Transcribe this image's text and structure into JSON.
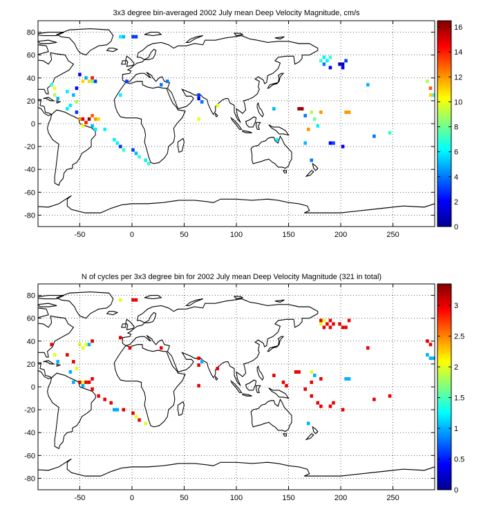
{
  "chart_data": [
    {
      "type": "heatmap",
      "title": "3x3 degree bin-averaged 2002 July mean Deep Velocity Magnitude, cm/s",
      "xlabel": "",
      "ylabel": "",
      "xlim": [
        -90,
        290
      ],
      "ylim": [
        -90,
        90
      ],
      "xticks": [
        -50,
        0,
        50,
        100,
        150,
        200,
        250
      ],
      "yticks": [
        -80,
        -60,
        -40,
        -20,
        0,
        20,
        40,
        60,
        80
      ],
      "grid": true,
      "colorbar": {
        "range": [
          0,
          16.5
        ],
        "ticks": [
          0,
          2,
          4,
          6,
          8,
          10,
          12,
          14,
          16
        ]
      },
      "cells": [
        {
          "lon": -11,
          "lat": 76,
          "value": 6
        },
        {
          "lon": 1,
          "lat": 76,
          "value": 3
        },
        {
          "lon": 4,
          "lat": 76,
          "value": 3
        },
        {
          "lon": -8,
          "lat": 76,
          "value": 5
        },
        {
          "lon": -77,
          "lat": 34,
          "value": 7
        },
        {
          "lon": -74,
          "lat": 31,
          "value": 10
        },
        {
          "lon": -74,
          "lat": 25,
          "value": 9
        },
        {
          "lon": -71,
          "lat": 22,
          "value": 5
        },
        {
          "lon": -62,
          "lat": 28,
          "value": 6
        },
        {
          "lon": -50,
          "lat": 43,
          "value": 2
        },
        {
          "lon": -47,
          "lat": 37,
          "value": 11
        },
        {
          "lon": -44,
          "lat": 40,
          "value": 5
        },
        {
          "lon": -41,
          "lat": 37,
          "value": 11
        },
        {
          "lon": -38,
          "lat": 40,
          "value": 14
        },
        {
          "lon": -38,
          "lat": 37,
          "value": 8
        },
        {
          "lon": -35,
          "lat": 37,
          "value": 3
        },
        {
          "lon": -53,
          "lat": 31,
          "value": 2
        },
        {
          "lon": -56,
          "lat": 25,
          "value": 5
        },
        {
          "lon": -53,
          "lat": 19,
          "value": 9
        },
        {
          "lon": -59,
          "lat": 16,
          "value": 6
        },
        {
          "lon": -62,
          "lat": 13,
          "value": 6
        },
        {
          "lon": -53,
          "lat": 10,
          "value": 3
        },
        {
          "lon": -50,
          "lat": 4,
          "value": 12
        },
        {
          "lon": -47,
          "lat": 4,
          "value": 15
        },
        {
          "lon": -44,
          "lat": 1,
          "value": 14
        },
        {
          "lon": -41,
          "lat": 4,
          "value": 16
        },
        {
          "lon": -38,
          "lat": 7,
          "value": 13
        },
        {
          "lon": -35,
          "lat": 4,
          "value": 12
        },
        {
          "lon": -32,
          "lat": 4,
          "value": 11
        },
        {
          "lon": -47,
          "lat": -2,
          "value": 10
        },
        {
          "lon": -38,
          "lat": -2,
          "value": 5
        },
        {
          "lon": -35,
          "lat": -5,
          "value": 6
        },
        {
          "lon": -26,
          "lat": -5,
          "value": 6
        },
        {
          "lon": -17,
          "lat": -14,
          "value": 6
        },
        {
          "lon": -14,
          "lat": -17,
          "value": 6
        },
        {
          "lon": -11,
          "lat": -20,
          "value": 3
        },
        {
          "lon": -8,
          "lat": -23,
          "value": 7
        },
        {
          "lon": 1,
          "lat": -23,
          "value": 3
        },
        {
          "lon": 4,
          "lat": -26,
          "value": 5
        },
        {
          "lon": 7,
          "lat": -29,
          "value": 7
        },
        {
          "lon": 13,
          "lat": -32,
          "value": 6
        },
        {
          "lon": 16,
          "lat": -35,
          "value": 7
        },
        {
          "lon": -11,
          "lat": 25,
          "value": 6
        },
        {
          "lon": -5,
          "lat": 37,
          "value": 3
        },
        {
          "lon": 28,
          "lat": 34,
          "value": 4
        },
        {
          "lon": 34,
          "lat": 37,
          "value": 4
        },
        {
          "lon": 64,
          "lat": 25,
          "value": 3
        },
        {
          "lon": 64,
          "lat": 22,
          "value": 2
        },
        {
          "lon": 67,
          "lat": 19,
          "value": 4
        },
        {
          "lon": 64,
          "lat": 4,
          "value": 10
        },
        {
          "lon": 82,
          "lat": 16,
          "value": 10
        },
        {
          "lon": 136,
          "lat": 13,
          "value": 5
        },
        {
          "lon": 139,
          "lat": -14,
          "value": 6
        },
        {
          "lon": 160,
          "lat": 13,
          "value": 16
        },
        {
          "lon": 163,
          "lat": 13,
          "value": 16
        },
        {
          "lon": 166,
          "lat": 7,
          "value": 4
        },
        {
          "lon": 172,
          "lat": 10,
          "value": 9
        },
        {
          "lon": 175,
          "lat": 4,
          "value": 8
        },
        {
          "lon": 178,
          "lat": -2,
          "value": 6
        },
        {
          "lon": 181,
          "lat": 10,
          "value": 12
        },
        {
          "lon": 169,
          "lat": -5,
          "value": 12
        },
        {
          "lon": 166,
          "lat": -17,
          "value": 5
        },
        {
          "lon": 172,
          "lat": -32,
          "value": 4
        },
        {
          "lon": 190,
          "lat": -17,
          "value": 2
        },
        {
          "lon": 193,
          "lat": -17,
          "value": 3
        },
        {
          "lon": 202,
          "lat": -20,
          "value": 2
        },
        {
          "lon": 205,
          "lat": 10,
          "value": 12
        },
        {
          "lon": 208,
          "lat": 10,
          "value": 12
        },
        {
          "lon": 232,
          "lat": -11,
          "value": 4
        },
        {
          "lon": 247,
          "lat": -8,
          "value": 7
        },
        {
          "lon": 181,
          "lat": 55,
          "value": 7
        },
        {
          "lon": 184,
          "lat": 58,
          "value": 6
        },
        {
          "lon": 187,
          "lat": 55,
          "value": 6
        },
        {
          "lon": 190,
          "lat": 58,
          "value": 7
        },
        {
          "lon": 184,
          "lat": 52,
          "value": 4
        },
        {
          "lon": 190,
          "lat": 49,
          "value": 2
        },
        {
          "lon": 199,
          "lat": 52,
          "value": 1
        },
        {
          "lon": 202,
          "lat": 52,
          "value": 1
        },
        {
          "lon": 205,
          "lat": 55,
          "value": 3
        },
        {
          "lon": 202,
          "lat": 49,
          "value": 2
        },
        {
          "lon": 226,
          "lat": 34,
          "value": 5
        },
        {
          "lon": 283,
          "lat": 37,
          "value": 9
        },
        {
          "lon": 286,
          "lat": 31,
          "value": 13
        },
        {
          "lon": 286,
          "lat": 25,
          "value": 11
        },
        {
          "lon": 289,
          "lat": 25,
          "value": 7
        }
      ]
    },
    {
      "type": "heatmap",
      "title": "N of cycles per 3x3 degree bin for 2002 July mean Deep Velocity Magnitude (321 in total)",
      "xlabel": "",
      "ylabel": "",
      "xlim": [
        -90,
        290
      ],
      "ylim": [
        -90,
        90
      ],
      "xticks": [
        -50,
        0,
        50,
        100,
        150,
        200,
        250
      ],
      "yticks": [
        -80,
        -60,
        -40,
        -20,
        0,
        20,
        40,
        60,
        80
      ],
      "grid": true,
      "colorbar": {
        "range": [
          0,
          3.35
        ],
        "ticks": [
          0,
          0.5,
          1,
          1.5,
          2,
          2.5,
          3
        ]
      },
      "cells": [
        {
          "lon": -11,
          "lat": 76,
          "value": 2
        },
        {
          "lon": 1,
          "lat": 76,
          "value": 3
        },
        {
          "lon": 4,
          "lat": 76,
          "value": 3
        },
        {
          "lon": -77,
          "lat": 37,
          "value": 3
        },
        {
          "lon": -74,
          "lat": 28,
          "value": 2
        },
        {
          "lon": -71,
          "lat": 22,
          "value": 1
        },
        {
          "lon": -62,
          "lat": 28,
          "value": 3
        },
        {
          "lon": -50,
          "lat": 37,
          "value": 2
        },
        {
          "lon": -47,
          "lat": 34,
          "value": 2
        },
        {
          "lon": -44,
          "lat": 37,
          "value": 2
        },
        {
          "lon": -41,
          "lat": 37,
          "value": 1
        },
        {
          "lon": -38,
          "lat": 40,
          "value": 3
        },
        {
          "lon": -56,
          "lat": 22,
          "value": 3
        },
        {
          "lon": -53,
          "lat": 16,
          "value": 2
        },
        {
          "lon": -59,
          "lat": 13,
          "value": 1
        },
        {
          "lon": -56,
          "lat": 4,
          "value": 1
        },
        {
          "lon": -50,
          "lat": 4,
          "value": 3
        },
        {
          "lon": -47,
          "lat": 4,
          "value": 2
        },
        {
          "lon": -44,
          "lat": 4,
          "value": 3
        },
        {
          "lon": -41,
          "lat": 4,
          "value": 3
        },
        {
          "lon": -38,
          "lat": 7,
          "value": 3
        },
        {
          "lon": -47,
          "lat": 1,
          "value": 1
        },
        {
          "lon": -38,
          "lat": -2,
          "value": 3
        },
        {
          "lon": -32,
          "lat": -8,
          "value": 3
        },
        {
          "lon": -26,
          "lat": -11,
          "value": 3
        },
        {
          "lon": -20,
          "lat": -14,
          "value": 3
        },
        {
          "lon": -17,
          "lat": -20,
          "value": 1
        },
        {
          "lon": -14,
          "lat": -20,
          "value": 1
        },
        {
          "lon": -8,
          "lat": -20,
          "value": 3
        },
        {
          "lon": 1,
          "lat": -23,
          "value": 3
        },
        {
          "lon": 4,
          "lat": -26,
          "value": 2
        },
        {
          "lon": 7,
          "lat": -29,
          "value": 3
        },
        {
          "lon": 13,
          "lat": -32,
          "value": 2
        },
        {
          "lon": -11,
          "lat": 43,
          "value": 3
        },
        {
          "lon": -2,
          "lat": 34,
          "value": 3
        },
        {
          "lon": 28,
          "lat": 34,
          "value": 3
        },
        {
          "lon": 64,
          "lat": 25,
          "value": 3
        },
        {
          "lon": 64,
          "lat": 19,
          "value": 3
        },
        {
          "lon": 67,
          "lat": 22,
          "value": 1
        },
        {
          "lon": 64,
          "lat": 1,
          "value": 3
        },
        {
          "lon": 82,
          "lat": 16,
          "value": 3
        },
        {
          "lon": 136,
          "lat": 10,
          "value": 3
        },
        {
          "lon": 145,
          "lat": 4,
          "value": 3
        },
        {
          "lon": 148,
          "lat": 1,
          "value": 3
        },
        {
          "lon": 157,
          "lat": 13,
          "value": 3
        },
        {
          "lon": 160,
          "lat": 13,
          "value": 3
        },
        {
          "lon": 172,
          "lat": 13,
          "value": 2
        },
        {
          "lon": 175,
          "lat": 10,
          "value": 1
        },
        {
          "lon": 172,
          "lat": 4,
          "value": 3
        },
        {
          "lon": 181,
          "lat": 7,
          "value": 3
        },
        {
          "lon": 166,
          "lat": -2,
          "value": 3
        },
        {
          "lon": 172,
          "lat": -8,
          "value": 3
        },
        {
          "lon": 178,
          "lat": -14,
          "value": 3
        },
        {
          "lon": 181,
          "lat": -17,
          "value": 3
        },
        {
          "lon": 190,
          "lat": -17,
          "value": 3
        },
        {
          "lon": 193,
          "lat": -14,
          "value": 3
        },
        {
          "lon": 169,
          "lat": -32,
          "value": 1
        },
        {
          "lon": 202,
          "lat": -20,
          "value": 3
        },
        {
          "lon": 205,
          "lat": 7,
          "value": 1
        },
        {
          "lon": 208,
          "lat": 7,
          "value": 1
        },
        {
          "lon": 232,
          "lat": -11,
          "value": 3
        },
        {
          "lon": 247,
          "lat": -8,
          "value": 3
        },
        {
          "lon": 181,
          "lat": 58,
          "value": 3
        },
        {
          "lon": 184,
          "lat": 58,
          "value": 2
        },
        {
          "lon": 187,
          "lat": 55,
          "value": 3
        },
        {
          "lon": 190,
          "lat": 58,
          "value": 3
        },
        {
          "lon": 181,
          "lat": 55,
          "value": 2
        },
        {
          "lon": 184,
          "lat": 52,
          "value": 3
        },
        {
          "lon": 190,
          "lat": 52,
          "value": 3
        },
        {
          "lon": 193,
          "lat": 55,
          "value": 3
        },
        {
          "lon": 199,
          "lat": 55,
          "value": 3
        },
        {
          "lon": 202,
          "lat": 52,
          "value": 3
        },
        {
          "lon": 205,
          "lat": 52,
          "value": 3
        },
        {
          "lon": 208,
          "lat": 58,
          "value": 3
        },
        {
          "lon": 226,
          "lat": 34,
          "value": 3
        },
        {
          "lon": 283,
          "lat": 40,
          "value": 3
        },
        {
          "lon": 286,
          "lat": 37,
          "value": 3
        },
        {
          "lon": 283,
          "lat": 28,
          "value": 1
        },
        {
          "lon": 286,
          "lat": 25,
          "value": 1
        },
        {
          "lon": 289,
          "lat": 25,
          "value": 1
        }
      ]
    }
  ]
}
